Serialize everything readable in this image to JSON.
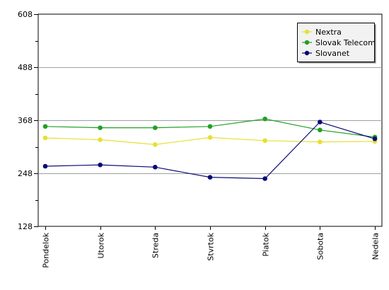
{
  "chart_data": {
    "type": "line",
    "title": "",
    "xlabel": "",
    "ylabel": "",
    "categories": [
      "Pondelok",
      "Utorok",
      "Streda",
      "Stvrtok",
      "Piatok",
      "Sobota",
      "Nedela"
    ],
    "ylim": [
      128,
      608
    ],
    "yticks": [
      128,
      248,
      368,
      488,
      608
    ],
    "y_minor_step": 60,
    "grid": true,
    "legend_position": "top-right",
    "series": [
      {
        "name": "Nextra",
        "color": "#e6e033",
        "values": [
          328,
          324,
          313,
          329,
          322,
          319,
          320
        ]
      },
      {
        "name": "Slovak Telecom",
        "color": "#22a022",
        "values": [
          354,
          351,
          351,
          354,
          371,
          346,
          330
        ]
      },
      {
        "name": "Slovanet",
        "color": "#0a0a78",
        "values": [
          264,
          267,
          262,
          239,
          236,
          364,
          326
        ]
      }
    ]
  }
}
